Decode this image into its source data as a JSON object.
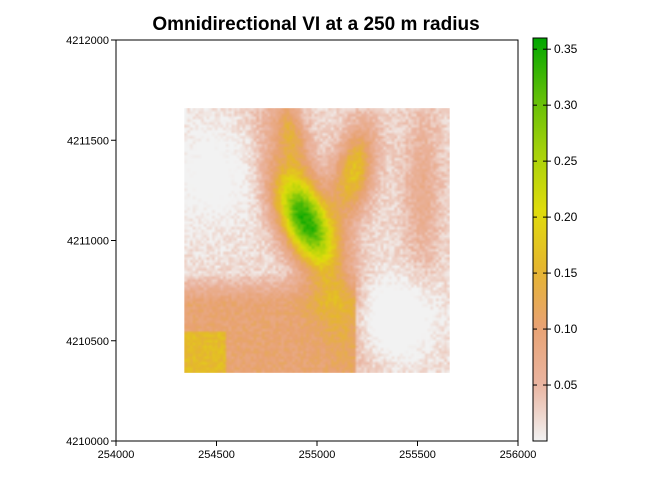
{
  "chart_data": {
    "type": "heatmap",
    "title": "Omnidirectional VI at a 250 m radius",
    "xlabel": "",
    "ylabel": "",
    "x_ticks": [
      "254000",
      "254500",
      "255000",
      "255500",
      "256000"
    ],
    "y_ticks": [
      "4210000",
      "4210500",
      "4211000",
      "4211500",
      "4212000"
    ],
    "xlim": [
      254000,
      256000
    ],
    "ylim": [
      4210000,
      4212000
    ],
    "raster_extent": {
      "x": [
        254340,
        255660
      ],
      "y": [
        4210340,
        4211660
      ]
    },
    "colorbar": {
      "min": 0.0,
      "max": 0.36,
      "ticks": [
        "0.05",
        "0.10",
        "0.15",
        "0.20",
        "0.25",
        "0.30",
        "0.35"
      ],
      "tick_values": [
        0.05,
        0.1,
        0.15,
        0.2,
        0.25,
        0.3,
        0.35
      ],
      "colors": [
        "#F2F2F2",
        "#EAB4A0",
        "#E8A272",
        "#E5B62E",
        "#E0DC0C",
        "#A7D20A",
        "#5EBE08",
        "#00A600"
      ]
    },
    "grid": false,
    "legend": "right"
  }
}
